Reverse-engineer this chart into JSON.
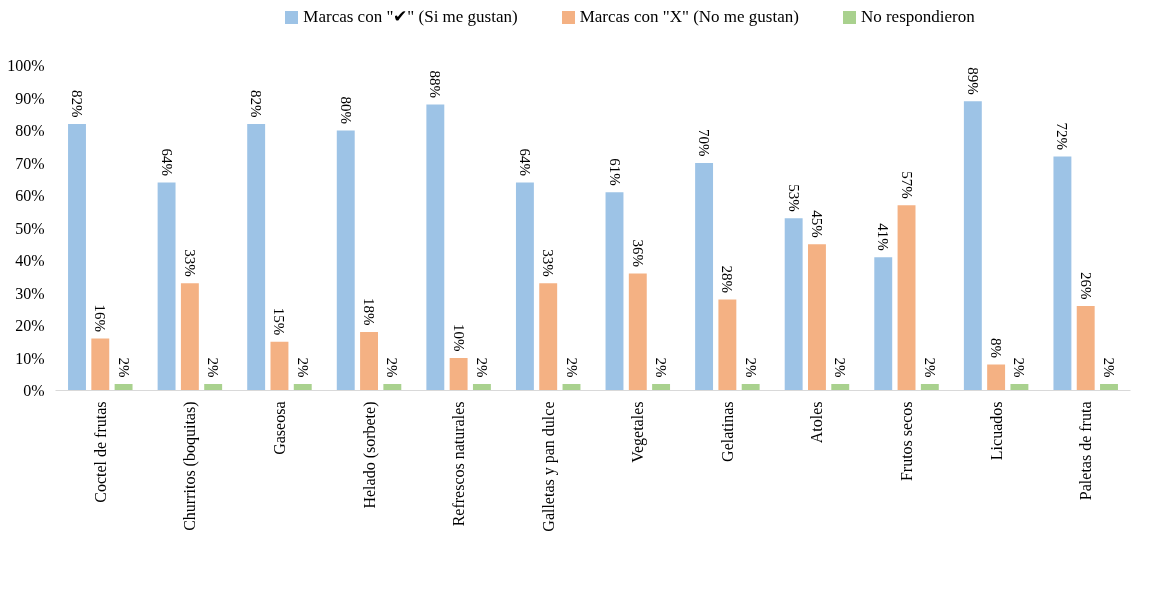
{
  "chart_data": {
    "type": "bar",
    "categories": [
      "Coctel de frutas",
      "Churritos (boquitas)",
      "Gaseosa",
      "Helado (sorbete)",
      "Refrescos naturales",
      "Galletas y pan dulce",
      "Vegetales",
      "Gelatinas",
      "Atoles",
      "Frutos secos",
      "Licuados",
      "Paletas de fruta"
    ],
    "series": [
      {
        "name": "Marcas con \"✔\" (Si me gustan)",
        "color": "#9dc3e6",
        "values": [
          82,
          64,
          82,
          80,
          88,
          64,
          61,
          70,
          53,
          41,
          89,
          72
        ],
        "value_labels": [
          "82%",
          "64%",
          "82%",
          "80%",
          "88%",
          "64%",
          "61%",
          "70%",
          "53%",
          "41%",
          "89%",
          "72%"
        ]
      },
      {
        "name": "Marcas con \"X\" (No me gustan)",
        "color": "#f4b183",
        "values": [
          16,
          33,
          15,
          18,
          10,
          33,
          36,
          28,
          45,
          57,
          8,
          26
        ],
        "value_labels": [
          "16%",
          "33%",
          "15%",
          "18%",
          "10%",
          "33%",
          "36%",
          "28%",
          "45%",
          "57%",
          "8%",
          "26%"
        ]
      },
      {
        "name": "No respondieron",
        "color": "#a9d18e",
        "values": [
          2,
          2,
          2,
          2,
          2,
          2,
          2,
          2,
          2,
          2,
          2,
          2
        ],
        "value_labels": [
          "2%",
          "2%",
          "2%",
          "2%",
          "2%",
          "2%",
          "2%",
          "2%",
          "2%",
          "2%",
          "2%",
          "2%"
        ]
      }
    ],
    "ylim": [
      0,
      100
    ],
    "yticks": [
      {
        "value": 0,
        "label": "0%"
      },
      {
        "value": 10,
        "label": "10%"
      },
      {
        "value": 20,
        "label": "20%"
      },
      {
        "value": 30,
        "label": "30%"
      },
      {
        "value": 40,
        "label": "40%"
      },
      {
        "value": 50,
        "label": "50%"
      },
      {
        "value": 60,
        "label": "60%"
      },
      {
        "value": 70,
        "label": "70%"
      },
      {
        "value": 80,
        "label": "80%"
      },
      {
        "value": 90,
        "label": "90%"
      },
      {
        "value": 100,
        "label": "100%"
      }
    ],
    "grid": false,
    "legend": "top"
  }
}
